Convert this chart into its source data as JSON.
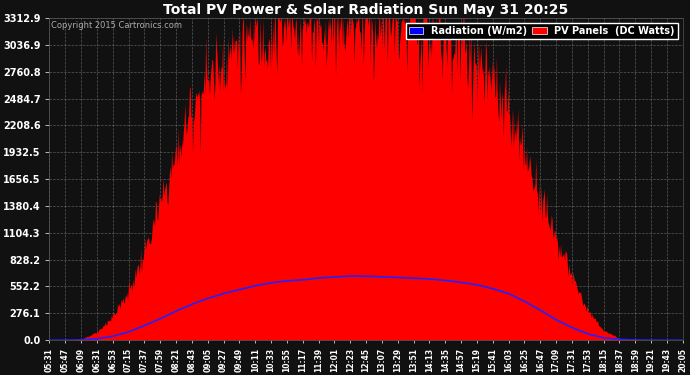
{
  "title": "Total PV Power & Solar Radiation Sun May 31 20:25",
  "copyright_text": "Copyright 2015 Cartronics.com",
  "legend_labels": [
    "Radiation (W/m2)",
    "PV Panels  (DC Watts)"
  ],
  "bg_color": "#111111",
  "plot_bg_color": "#111111",
  "grid_color": "#888888",
  "title_color": "#ffffff",
  "tick_color": "#ffffff",
  "y_max": 3312.9,
  "y_min": 0.0,
  "y_ticks": [
    0.0,
    276.1,
    552.2,
    828.2,
    1104.3,
    1380.4,
    1656.5,
    1932.5,
    2208.6,
    2484.7,
    2760.8,
    3036.9,
    3312.9
  ],
  "x_labels": [
    "05:31",
    "05:47",
    "06:09",
    "06:31",
    "06:53",
    "07:15",
    "07:37",
    "07:59",
    "08:21",
    "08:43",
    "09:05",
    "09:27",
    "09:49",
    "10:11",
    "10:33",
    "10:55",
    "11:17",
    "11:39",
    "12:01",
    "12:23",
    "12:45",
    "13:07",
    "13:29",
    "13:51",
    "14:13",
    "14:35",
    "14:57",
    "15:19",
    "15:41",
    "16:03",
    "16:25",
    "16:47",
    "17:09",
    "17:31",
    "17:53",
    "18:15",
    "18:37",
    "18:59",
    "19:21",
    "19:43",
    "20:05"
  ],
  "pv_data": [
    0,
    0,
    10,
    80,
    250,
    500,
    900,
    1400,
    1900,
    2400,
    2700,
    2900,
    3050,
    3150,
    3200,
    3250,
    3280,
    3300,
    3310,
    3312,
    3300,
    3280,
    3260,
    3220,
    3180,
    3100,
    3000,
    2850,
    2600,
    2300,
    1900,
    1500,
    1050,
    650,
    300,
    100,
    20,
    5,
    0,
    0,
    0
  ],
  "pv_noise_scale": 0.08,
  "radiation_data": [
    0,
    0,
    3,
    15,
    40,
    85,
    150,
    220,
    300,
    370,
    430,
    480,
    520,
    560,
    590,
    610,
    620,
    640,
    650,
    660,
    658,
    652,
    645,
    638,
    630,
    615,
    595,
    570,
    530,
    480,
    400,
    310,
    210,
    130,
    65,
    25,
    8,
    2,
    0,
    0,
    0
  ],
  "pv_color": "#ff0000",
  "radiation_line_color": "#2222ff",
  "noise_seed": 123
}
